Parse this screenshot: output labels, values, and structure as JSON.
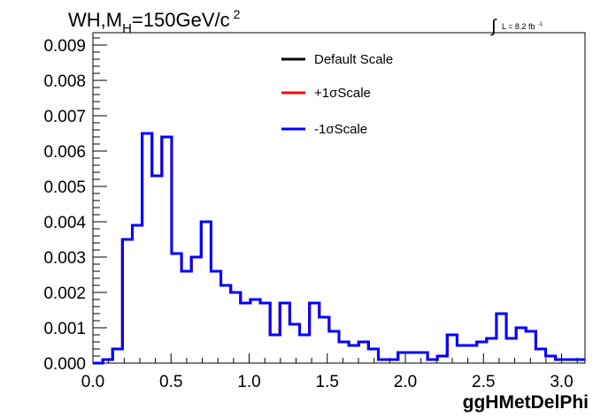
{
  "chart_data": {
    "type": "line",
    "title_main": "WH,M",
    "title_sub": "H",
    "title_rest": "=150GeV/c",
    "title_sup": "2",
    "lumi_integral": "∫",
    "lumi_text": "L = 8.2 fb",
    "lumi_sup": "-1",
    "xlabel": "ggHMetDelPhi",
    "ylabel": "",
    "xlim": [
      0.0,
      3.15
    ],
    "ylim": [
      0.0,
      0.00935
    ],
    "x_ticks": [
      "0.0",
      "0.5",
      "1.0",
      "1.5",
      "2.0",
      "2.5",
      "3.0"
    ],
    "x_tick_values": [
      0.0,
      0.5,
      1.0,
      1.5,
      2.0,
      2.5,
      3.0
    ],
    "y_ticks": [
      "0.000",
      "0.001",
      "0.002",
      "0.003",
      "0.004",
      "0.005",
      "0.006",
      "0.007",
      "0.008",
      "0.009"
    ],
    "y_tick_values": [
      0.0,
      0.001,
      0.002,
      0.003,
      0.004,
      0.005,
      0.006,
      0.007,
      0.008,
      0.009
    ],
    "grid": false,
    "legend_position": "top-right",
    "bin_width": 0.063,
    "series": [
      {
        "name": "Default Scale",
        "color": "#000000",
        "values": [
          0,
          0.0001,
          0.0004,
          0.0035,
          0.0039,
          0.0065,
          0.0053,
          0.0064,
          0.0031,
          0.0026,
          0.003,
          0.004,
          0.0026,
          0.0022,
          0.002,
          0.0017,
          0.0018,
          0.0017,
          0.0008,
          0.0017,
          0.0011,
          0.0008,
          0.0017,
          0.0013,
          0.0009,
          0.0006,
          0.0005,
          0.0006,
          0.0004,
          0.0001,
          0.0001,
          0.0003,
          0.0003,
          0.0003,
          0.0001,
          0.0002,
          0.0008,
          0.0005,
          0.0005,
          0.0006,
          0.0007,
          0.0014,
          0.0007,
          0.001,
          0.0009,
          0.0004,
          0.0002,
          0.0001,
          0.0001,
          0.0001
        ]
      },
      {
        "name": "+1σScale",
        "color": "#ff0000",
        "values": [
          0,
          0.0001,
          0.0004,
          0.0035,
          0.0039,
          0.0065,
          0.0053,
          0.0064,
          0.0031,
          0.0026,
          0.003,
          0.004,
          0.0026,
          0.0022,
          0.002,
          0.0017,
          0.0018,
          0.0017,
          0.0008,
          0.0017,
          0.0011,
          0.0008,
          0.0017,
          0.0013,
          0.0009,
          0.0006,
          0.0005,
          0.0006,
          0.0004,
          0.0001,
          0.0001,
          0.0003,
          0.0003,
          0.0003,
          0.0001,
          0.0002,
          0.0008,
          0.0005,
          0.0005,
          0.0006,
          0.0007,
          0.0014,
          0.0007,
          0.001,
          0.0009,
          0.0004,
          0.0002,
          0.0001,
          0.0001,
          0.0001
        ]
      },
      {
        "name": "-1σScale",
        "color": "#0000ff",
        "values": [
          0,
          0.0001,
          0.0004,
          0.0035,
          0.0039,
          0.0065,
          0.0053,
          0.0064,
          0.0031,
          0.0026,
          0.003,
          0.004,
          0.0026,
          0.0022,
          0.002,
          0.0017,
          0.0018,
          0.0017,
          0.0008,
          0.0017,
          0.0011,
          0.0008,
          0.0017,
          0.0013,
          0.0009,
          0.0006,
          0.0005,
          0.0006,
          0.0004,
          0.0001,
          0.0001,
          0.0003,
          0.0003,
          0.0003,
          0.0001,
          0.0002,
          0.0008,
          0.0005,
          0.0005,
          0.0006,
          0.0007,
          0.0014,
          0.0007,
          0.001,
          0.0009,
          0.0004,
          0.0002,
          0.0001,
          0.0001,
          0.0001
        ]
      }
    ]
  }
}
